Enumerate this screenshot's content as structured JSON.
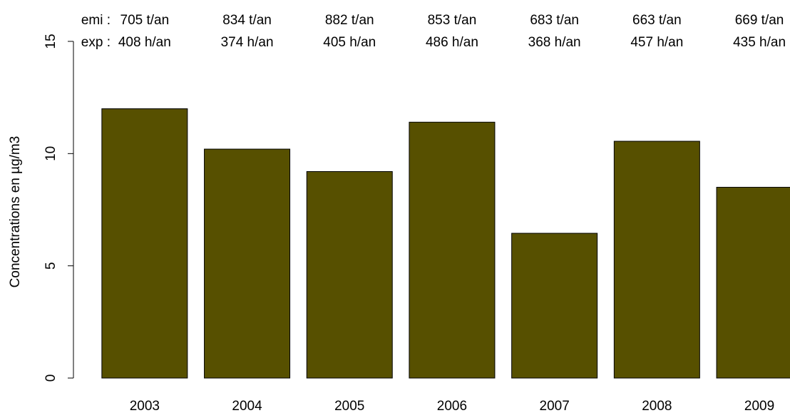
{
  "chart_data": {
    "type": "bar",
    "categories": [
      "2003",
      "2004",
      "2005",
      "2006",
      "2007",
      "2008",
      "2009"
    ],
    "values": [
      12.0,
      10.2,
      9.2,
      11.4,
      6.45,
      10.55,
      8.5
    ],
    "ylabel": "Concentrations en µg/m3",
    "ylim": [
      0,
      15
    ],
    "yticks": [
      "0",
      "5",
      "10",
      "15"
    ],
    "bar_color": "#575000",
    "annotation_rows": [
      {
        "label": "emi :",
        "values": [
          "705 t/an",
          "834 t/an",
          "882 t/an",
          "853 t/an",
          "683 t/an",
          "663 t/an",
          "669 t/an"
        ]
      },
      {
        "label": "exp :",
        "values": [
          "408 h/an",
          "374 h/an",
          "405 h/an",
          "486 h/an",
          "368 h/an",
          "457 h/an",
          "435 h/an"
        ]
      }
    ]
  }
}
